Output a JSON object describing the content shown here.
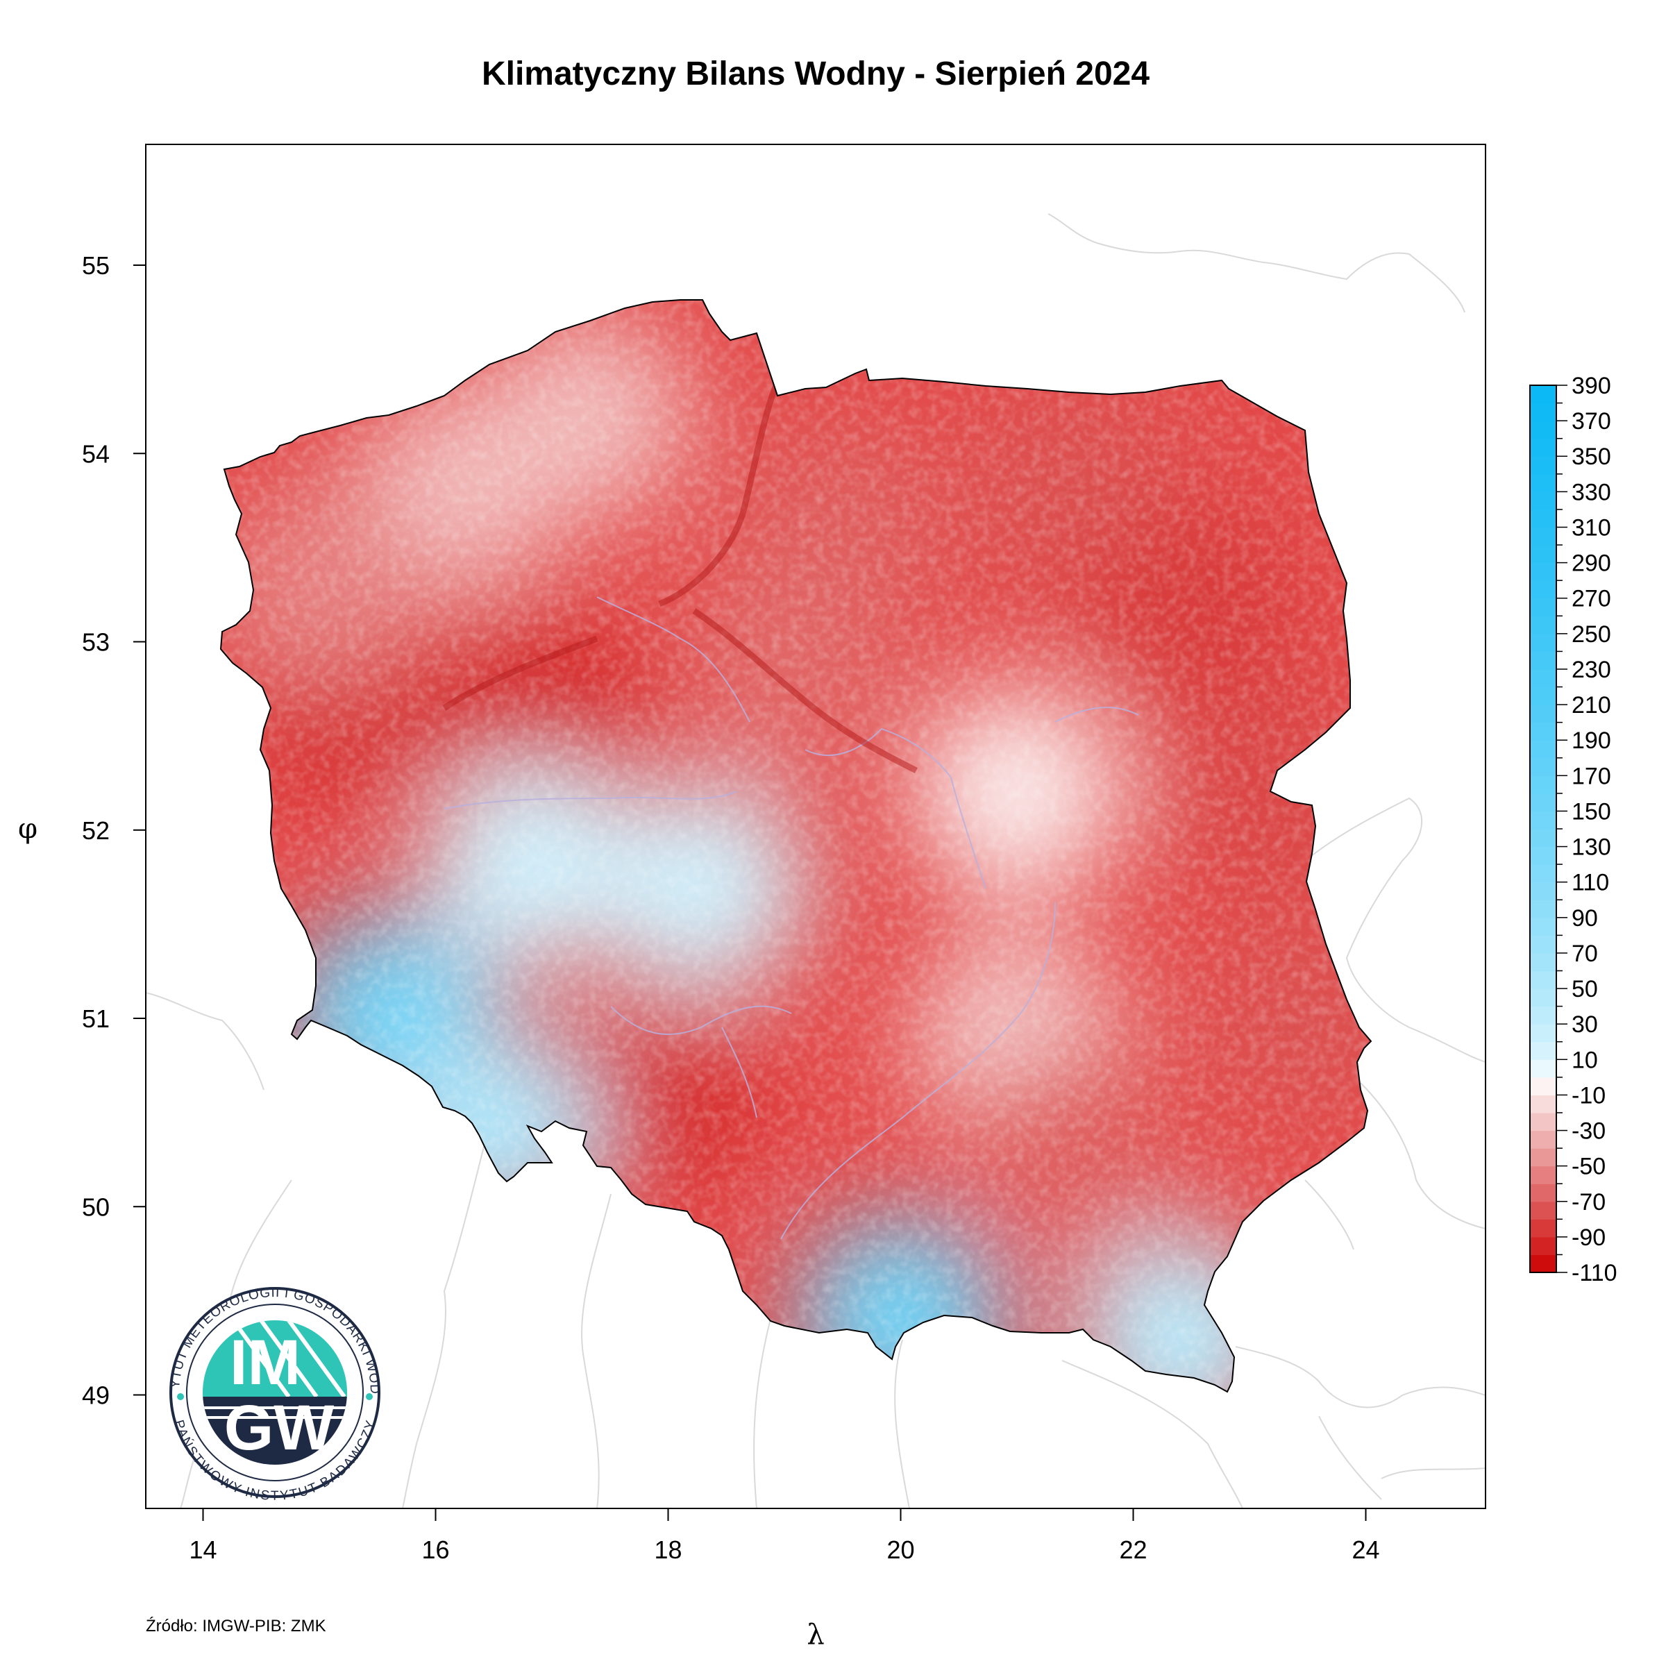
{
  "title": "Klimatyczny Bilans Wodny - Sierpień 2024",
  "source": "Źródło: IMGW-PIB: ZMK",
  "axes": {
    "xlabel": "λ",
    "ylabel": "φ",
    "x_ticks": [
      "14",
      "16",
      "18",
      "20",
      "22",
      "24"
    ],
    "y_ticks": [
      "55",
      "54",
      "53",
      "52",
      "51",
      "50",
      "49"
    ]
  },
  "legend": {
    "labels": [
      "390",
      "370",
      "350",
      "330",
      "310",
      "290",
      "270",
      "250",
      "230",
      "210",
      "190",
      "170",
      "150",
      "130",
      "110",
      "90",
      "70",
      "50",
      "30",
      "10",
      "-10",
      "-30",
      "-50",
      "-70",
      "-90",
      "-110"
    ],
    "color_max": "#0ab8f5",
    "color_zero": "#ffffff",
    "color_min": "#cc0000"
  },
  "logo": {
    "big_top": "IM",
    "big_bottom": "GW",
    "ring_top": "INSTYTUT METEOROLOGII I GOSPODARKI WODNEJ",
    "ring_bottom": "PAŃSTWOWY INSTYTUT BADAWCZY",
    "teal": "#2ec4b6",
    "navy": "#1e2a44"
  },
  "chart_data": {
    "type": "heatmap",
    "title": "Klimatyczny Bilans Wodny - Sierpień 2024",
    "xlabel": "λ",
    "ylabel": "φ",
    "xlim": [
      13.5,
      25
    ],
    "ylim": [
      48.45,
      55.65
    ],
    "colorbar": {
      "min": -110,
      "max": 390,
      "step": 20,
      "ticks": [
        390,
        370,
        350,
        330,
        310,
        290,
        270,
        250,
        230,
        210,
        190,
        170,
        150,
        130,
        110,
        90,
        70,
        50,
        30,
        10,
        -10,
        -30,
        -50,
        -70,
        -90,
        -110
      ]
    },
    "regions": [
      {
        "lon": 21.5,
        "lat": 53.8,
        "value": -75
      },
      {
        "lon": 22.5,
        "lat": 53.2,
        "value": -85
      },
      {
        "lon": 23.2,
        "lat": 52.2,
        "value": -80
      },
      {
        "lon": 23.5,
        "lat": 51.0,
        "value": -75
      },
      {
        "lon": 19.5,
        "lat": 53.6,
        "value": -70
      },
      {
        "lon": 19.0,
        "lat": 52.9,
        "value": -65
      },
      {
        "lon": 16.9,
        "lat": 52.6,
        "value": -95
      },
      {
        "lon": 15.2,
        "lat": 52.7,
        "value": -90
      },
      {
        "lon": 17.9,
        "lat": 50.6,
        "value": -90
      },
      {
        "lon": 16.2,
        "lat": 53.8,
        "value": -30
      },
      {
        "lon": 15.0,
        "lat": 53.3,
        "value": -55
      },
      {
        "lon": 17.3,
        "lat": 54.2,
        "value": -30
      },
      {
        "lon": 21.0,
        "lat": 52.2,
        "value": -10
      },
      {
        "lon": 16.8,
        "lat": 51.8,
        "value": 20
      },
      {
        "lon": 18.3,
        "lat": 51.7,
        "value": 20
      },
      {
        "lon": 15.6,
        "lat": 51.0,
        "value": 150
      },
      {
        "lon": 16.5,
        "lat": 50.4,
        "value": 50
      },
      {
        "lon": 20.0,
        "lat": 49.4,
        "value": 150
      },
      {
        "lon": 22.4,
        "lat": 49.3,
        "value": 40
      },
      {
        "lon": 21.0,
        "lat": 50.9,
        "value": -25
      },
      {
        "lon": 21.5,
        "lat": 50.3,
        "value": -70
      }
    ]
  }
}
